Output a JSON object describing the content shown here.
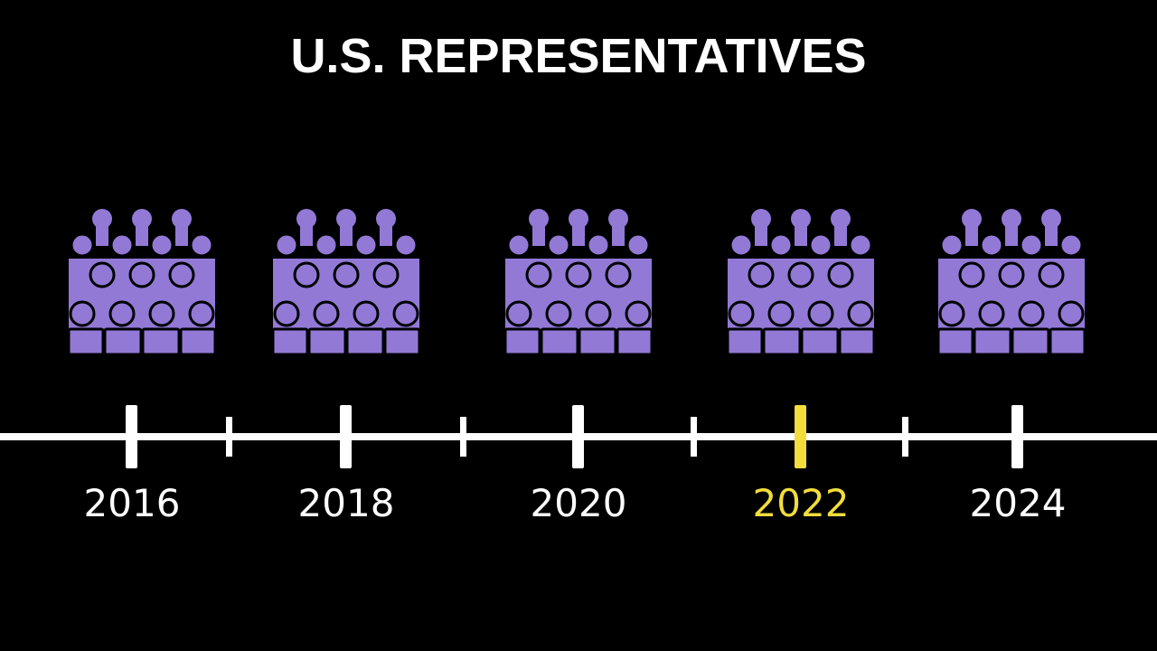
{
  "title": "U.S. REPRESENTATIVES",
  "timeline": {
    "labels": [
      "2016",
      "2018",
      "2020",
      "2022",
      "2024"
    ]
  }
}
